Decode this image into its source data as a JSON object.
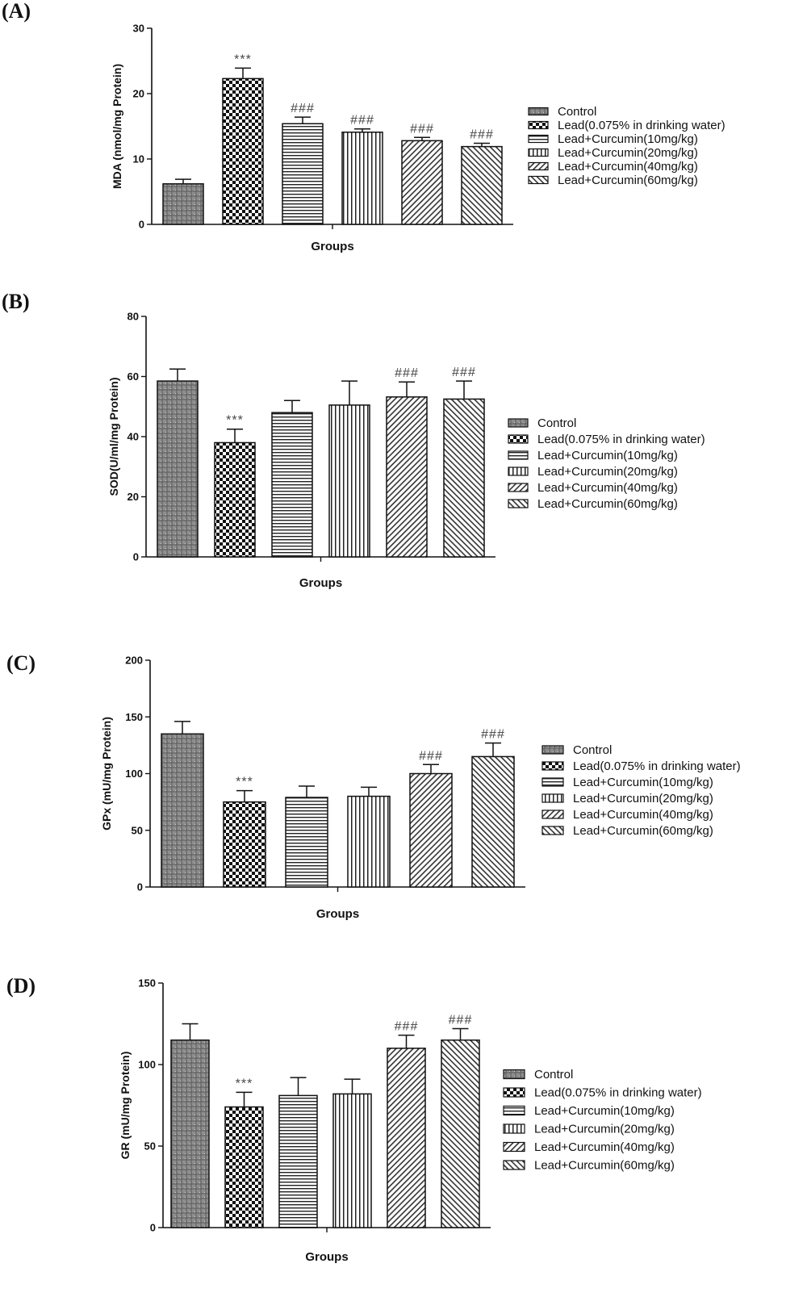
{
  "legend_entries": [
    "Control",
    "Lead(0.075% in drinking water)",
    "Lead+Curcumin(10mg/kg)",
    "Lead+Curcumin(20mg/kg)",
    "Lead+Curcumin(40mg/kg)",
    "Lead+Curcumin(60mg/kg)"
  ],
  "chart_data": [
    {
      "panel": "(A)",
      "type": "bar",
      "categories": [
        "Control",
        "Lead(0.075% in drinking water)",
        "Lead+Curcumin(10mg/kg)",
        "Lead+Curcumin(20mg/kg)",
        "Lead+Curcumin(40mg/kg)",
        "Lead+Curcumin(60mg/kg)"
      ],
      "values": [
        6.2,
        22.3,
        15.4,
        14.1,
        12.8,
        11.9
      ],
      "errors": [
        0.7,
        1.6,
        1.0,
        0.5,
        0.5,
        0.5
      ],
      "significance": [
        "",
        "***",
        "###",
        "###",
        "###",
        "###"
      ],
      "xlabel": "Groups",
      "ylabel": "MDA (nmol/mg Protein)",
      "ylim": [
        0,
        30
      ],
      "yticks": [
        0,
        10,
        20,
        30
      ],
      "legend": "right"
    },
    {
      "panel": "(B)",
      "type": "bar",
      "categories": [
        "Control",
        "Lead(0.075% in drinking water)",
        "Lead+Curcumin(10mg/kg)",
        "Lead+Curcumin(20mg/kg)",
        "Lead+Curcumin(40mg/kg)",
        "Lead+Curcumin(60mg/kg)"
      ],
      "values": [
        58.5,
        38,
        48,
        50.5,
        53.2,
        52.5
      ],
      "errors": [
        4,
        4.5,
        4,
        8,
        5,
        6
      ],
      "significance": [
        "",
        "***",
        "",
        "",
        "###",
        "###"
      ],
      "xlabel": "Groups",
      "ylabel": "SOD(U/ml/mg Protein)",
      "ylim": [
        0,
        80
      ],
      "yticks": [
        0,
        20,
        40,
        60,
        80
      ],
      "legend": "right"
    },
    {
      "panel": "(C)",
      "type": "bar",
      "categories": [
        "Control",
        "Lead(0.075% in drinking water)",
        "Lead+Curcumin(10mg/kg)",
        "Lead+Curcumin(20mg/kg)",
        "Lead+Curcumin(40mg/kg)",
        "Lead+Curcumin(60mg/kg)"
      ],
      "values": [
        135,
        75,
        79,
        80,
        100,
        115
      ],
      "errors": [
        11,
        10,
        10,
        8,
        8,
        12
      ],
      "significance": [
        "",
        "***",
        "",
        "",
        "###",
        "###"
      ],
      "xlabel": "Groups",
      "ylabel": "GPx (mU/mg Protein)",
      "ylim": [
        0,
        200
      ],
      "yticks": [
        0,
        50,
        100,
        150,
        200
      ],
      "legend": "right"
    },
    {
      "panel": "(D)",
      "type": "bar",
      "categories": [
        "Control",
        "Lead(0.075% in drinking water)",
        "Lead+Curcumin(10mg/kg)",
        "Lead+Curcumin(20mg/kg)",
        "Lead+Curcumin(40mg/kg)",
        "Lead+Curcumin(60mg/kg)"
      ],
      "values": [
        115,
        74,
        81,
        82,
        110,
        115
      ],
      "errors": [
        10,
        9,
        11,
        9,
        8,
        7
      ],
      "significance": [
        "",
        "***",
        "",
        "",
        "###",
        "###"
      ],
      "xlabel": "Groups",
      "ylabel": "GR (mU/mg Protein)",
      "ylim": [
        0,
        150
      ],
      "yticks": [
        0,
        50,
        100,
        150
      ],
      "legend": "right"
    }
  ]
}
